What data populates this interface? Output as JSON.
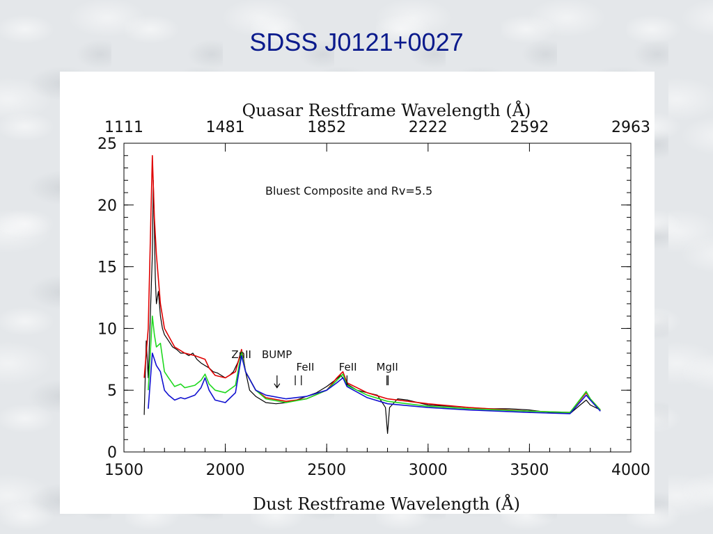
{
  "slide_title": "SDSS J0121+0027",
  "colors": {
    "title": "#0a1a8c",
    "quasar": "#000000",
    "red": "#e00000",
    "green": "#1fd81f",
    "blue": "#1010d0"
  },
  "chart_data": {
    "type": "line",
    "title": "",
    "annotation_text": "Bluest Composite and Rv=5.5",
    "xlabel": "Dust Restframe Wavelength (Å)",
    "x2label": "Quasar Restframe Wavelength (Å)",
    "ylabel": "",
    "xlim": [
      1500,
      4000
    ],
    "ylim": [
      0,
      25
    ],
    "x_ticks": [
      "1500",
      "2000",
      "2500",
      "3000",
      "3500",
      "4000"
    ],
    "x2_ticks": [
      "1111",
      "1481",
      "1852",
      "2222",
      "2592",
      "2963"
    ],
    "y_ticks": [
      "0",
      "5",
      "10",
      "15",
      "20",
      "25"
    ],
    "grid": false,
    "line_labels": [
      {
        "text": "ZnII",
        "x": 2030,
        "y": 7.6
      },
      {
        "text": "BUMP",
        "x": 2180,
        "y": 7.6
      },
      {
        "text": "FeII",
        "x": 2350,
        "y": 6.6
      },
      {
        "text": "FeII",
        "x": 2560,
        "y": 6.6
      },
      {
        "text": "MgII",
        "x": 2745,
        "y": 6.6
      }
    ],
    "series": [
      {
        "color": "#000000",
        "x": [
          1600,
          1610,
          1620,
          1630,
          1640,
          1645,
          1650,
          1655,
          1660,
          1670,
          1680,
          1690,
          1700,
          1720,
          1740,
          1760,
          1780,
          1800,
          1820,
          1840,
          1860,
          1880,
          1900,
          1920,
          1940,
          1960,
          1980,
          2000,
          2020,
          2040,
          2060,
          2080,
          2090,
          2100,
          2120,
          2150,
          2200,
          2250,
          2300,
          2350,
          2400,
          2450,
          2500,
          2540,
          2570,
          2600,
          2650,
          2700,
          2750,
          2790,
          2800,
          2810,
          2850,
          2900,
          2950,
          3000,
          3100,
          3200,
          3300,
          3400,
          3500,
          3600,
          3700,
          3750,
          3780,
          3800,
          3850
        ],
        "y": [
          3,
          9,
          6,
          11,
          16,
          22,
          18,
          14,
          12,
          13,
          11,
          10,
          9.5,
          9,
          8.5,
          8.3,
          8,
          8,
          7.8,
          8,
          7.5,
          7.2,
          7,
          6.8,
          6.5,
          6.4,
          6.2,
          6,
          6.2,
          6.5,
          7.2,
          8,
          7.6,
          6.5,
          5,
          4.5,
          4,
          3.9,
          4,
          4.2,
          4.5,
          4.8,
          5.3,
          5.8,
          6.2,
          5.5,
          5,
          4.8,
          4.6,
          3.6,
          1.5,
          3.6,
          4.3,
          4.2,
          4,
          3.8,
          3.7,
          3.6,
          3.5,
          3.5,
          3.4,
          3.2,
          3.1,
          3.8,
          4.2,
          3.8,
          3.4
        ]
      },
      {
        "color": "#e00000",
        "x": [
          1600,
          1620,
          1640,
          1650,
          1660,
          1680,
          1700,
          1750,
          1800,
          1850,
          1900,
          1920,
          1950,
          2000,
          2050,
          2080,
          2100,
          2150,
          2200,
          2300,
          2400,
          2500,
          2550,
          2580,
          2600,
          2700,
          2800,
          3000,
          3200,
          3500,
          3700,
          3780,
          3800,
          3850
        ],
        "y": [
          6,
          10,
          24,
          19,
          16,
          12,
          10,
          8.5,
          8,
          7.8,
          7.5,
          6.8,
          6.2,
          6,
          6.5,
          8.3,
          6.5,
          5,
          4.4,
          4.1,
          4.3,
          5,
          6,
          6.5,
          5.6,
          4.8,
          4.3,
          3.9,
          3.6,
          3.3,
          3.2,
          4.8,
          4.3,
          3.4
        ]
      },
      {
        "color": "#1fd81f",
        "x": [
          1620,
          1640,
          1650,
          1660,
          1680,
          1700,
          1720,
          1750,
          1780,
          1800,
          1850,
          1880,
          1900,
          1920,
          1950,
          2000,
          2050,
          2080,
          2100,
          2150,
          2200,
          2300,
          2400,
          2500,
          2550,
          2580,
          2600,
          2700,
          2800,
          3000,
          3200,
          3500,
          3700,
          3780,
          3800,
          3850
        ],
        "y": [
          5,
          11,
          9.5,
          8.5,
          8.8,
          6.5,
          6,
          5.3,
          5.5,
          5.2,
          5.4,
          5.8,
          6.3,
          5.5,
          5,
          4.8,
          5.4,
          8.1,
          6.5,
          5,
          4.3,
          4,
          4.3,
          5,
          5.8,
          6.3,
          5.4,
          4.6,
          4.1,
          3.7,
          3.5,
          3.3,
          3.2,
          4.9,
          4.3,
          3.4
        ]
      },
      {
        "color": "#1010d0",
        "x": [
          1620,
          1640,
          1650,
          1660,
          1680,
          1700,
          1720,
          1750,
          1780,
          1800,
          1850,
          1880,
          1900,
          1920,
          1950,
          2000,
          2050,
          2080,
          2100,
          2150,
          2200,
          2300,
          2400,
          2500,
          2550,
          2580,
          2600,
          2700,
          2800,
          3000,
          3200,
          3500,
          3700,
          3780,
          3800,
          3850
        ],
        "y": [
          3.5,
          8,
          7.5,
          7,
          6.5,
          5,
          4.6,
          4.2,
          4.4,
          4.3,
          4.6,
          5.2,
          6,
          5,
          4.2,
          4,
          4.8,
          7.8,
          6.5,
          5,
          4.6,
          4.3,
          4.5,
          5,
          5.6,
          6,
          5.3,
          4.4,
          3.9,
          3.6,
          3.4,
          3.2,
          3.1,
          4.6,
          4.2,
          3.3
        ]
      }
    ]
  }
}
